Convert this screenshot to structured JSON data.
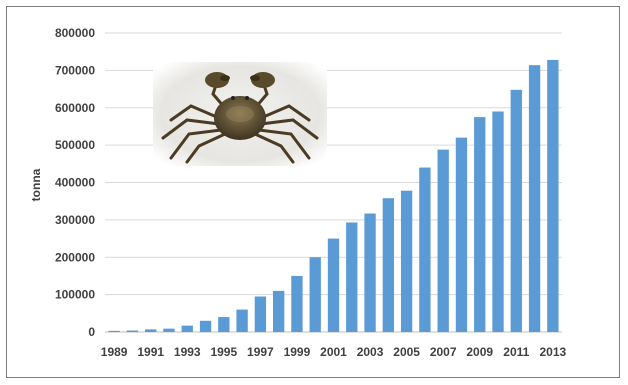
{
  "chart_data": {
    "type": "bar",
    "title": "",
    "xlabel": "",
    "ylabel": "tonna",
    "ylim": [
      0,
      800000
    ],
    "yticks": [
      0,
      100000,
      200000,
      300000,
      400000,
      500000,
      600000,
      700000,
      800000
    ],
    "grid": true,
    "legend": "none",
    "bar_color": "#5b9bd5",
    "categories": [
      "1989",
      "1990",
      "1991",
      "1992",
      "1993",
      "1994",
      "1995",
      "1996",
      "1997",
      "1998",
      "1999",
      "2000",
      "2001",
      "2002",
      "2003",
      "2004",
      "2005",
      "2006",
      "2007",
      "2008",
      "2009",
      "2010",
      "2011",
      "2012",
      "2013"
    ],
    "values": [
      3000,
      4000,
      7000,
      9000,
      17000,
      30000,
      40000,
      60000,
      95000,
      110000,
      150000,
      200000,
      250000,
      293000,
      317000,
      358000,
      378000,
      440000,
      488000,
      520000,
      575000,
      590000,
      648000,
      714000,
      728000
    ],
    "xtick_labels": [
      "1989",
      "1991",
      "1993",
      "1995",
      "1997",
      "1999",
      "2001",
      "2003",
      "2005",
      "2007",
      "2009",
      "2011",
      "2013"
    ]
  },
  "image": {
    "name": "chinese-mitten-crab-photo"
  }
}
